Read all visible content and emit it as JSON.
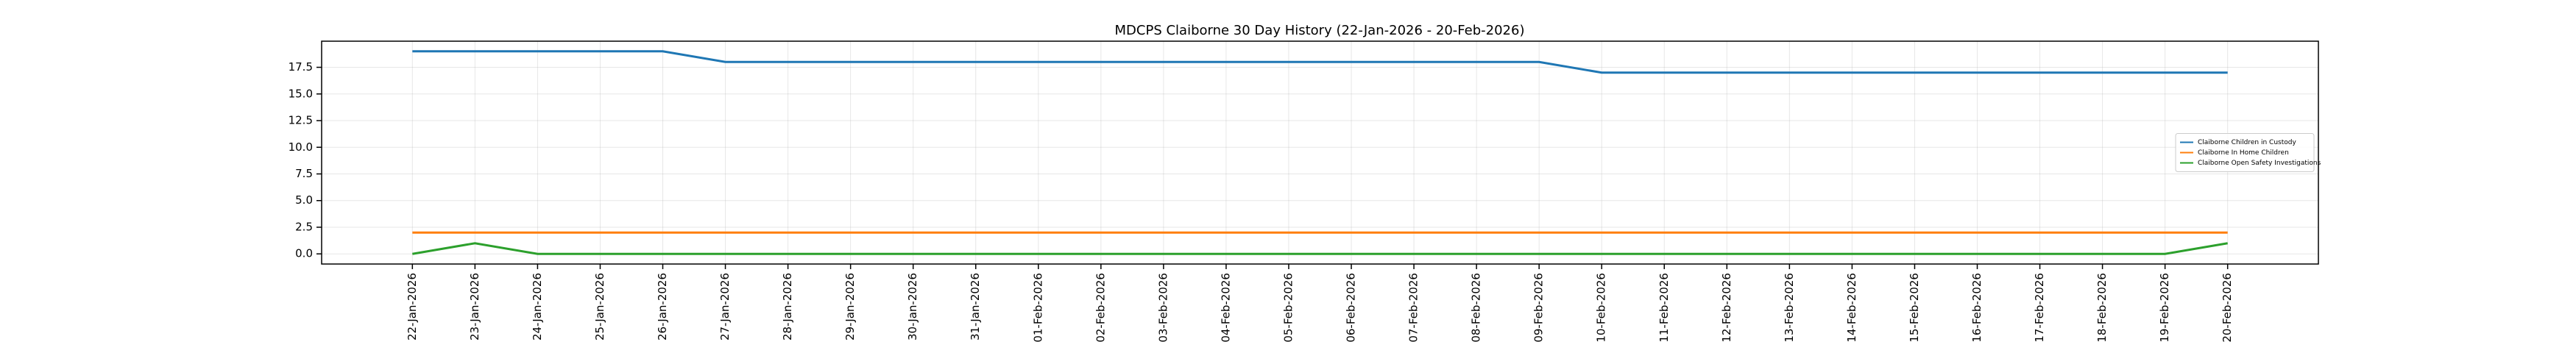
{
  "chart_data": {
    "type": "line",
    "title": "MDCPS Claiborne 30 Day History (22-Jan-2026 - 20-Feb-2026)",
    "categories": [
      "22-Jan-2026",
      "23-Jan-2026",
      "24-Jan-2026",
      "25-Jan-2026",
      "26-Jan-2026",
      "27-Jan-2026",
      "28-Jan-2026",
      "29-Jan-2026",
      "30-Jan-2026",
      "31-Jan-2026",
      "01-Feb-2026",
      "02-Feb-2026",
      "03-Feb-2026",
      "04-Feb-2026",
      "05-Feb-2026",
      "06-Feb-2026",
      "07-Feb-2026",
      "08-Feb-2026",
      "09-Feb-2026",
      "10-Feb-2026",
      "11-Feb-2026",
      "12-Feb-2026",
      "13-Feb-2026",
      "14-Feb-2026",
      "15-Feb-2026",
      "16-Feb-2026",
      "17-Feb-2026",
      "18-Feb-2026",
      "19-Feb-2026",
      "20-Feb-2026"
    ],
    "series": [
      {
        "name": "Claiborne Children in Custody",
        "color": "#1f77b4",
        "values": [
          19,
          19,
          19,
          19,
          19,
          18,
          18,
          18,
          18,
          18,
          18,
          18,
          18,
          18,
          18,
          18,
          18,
          18,
          18,
          17,
          17,
          17,
          17,
          17,
          17,
          17,
          17,
          17,
          17,
          17
        ]
      },
      {
        "name": "Claiborne In Home Children",
        "color": "#ff7f0e",
        "values": [
          2,
          2,
          2,
          2,
          2,
          2,
          2,
          2,
          2,
          2,
          2,
          2,
          2,
          2,
          2,
          2,
          2,
          2,
          2,
          2,
          2,
          2,
          2,
          2,
          2,
          2,
          2,
          2,
          2,
          2
        ]
      },
      {
        "name": "Claiborne Open Safety Investigations",
        "color": "#2ca02c",
        "values": [
          0,
          1,
          0,
          0,
          0,
          0,
          0,
          0,
          0,
          0,
          0,
          0,
          0,
          0,
          0,
          0,
          0,
          0,
          0,
          0,
          0,
          0,
          0,
          0,
          0,
          0,
          0,
          0,
          0,
          1
        ]
      }
    ],
    "ylim": [
      -0.95,
      19.95
    ],
    "yticks": [
      {
        "value": 0,
        "label": "0.0"
      },
      {
        "value": 2.5,
        "label": "2.5"
      },
      {
        "value": 5,
        "label": "5.0"
      },
      {
        "value": 7.5,
        "label": "7.5"
      },
      {
        "value": 10,
        "label": "10.0"
      },
      {
        "value": 12.5,
        "label": "12.5"
      },
      {
        "value": 15,
        "label": "15.0"
      },
      {
        "value": 17.5,
        "label": "17.5"
      }
    ],
    "grid": true,
    "legend": "center right"
  }
}
